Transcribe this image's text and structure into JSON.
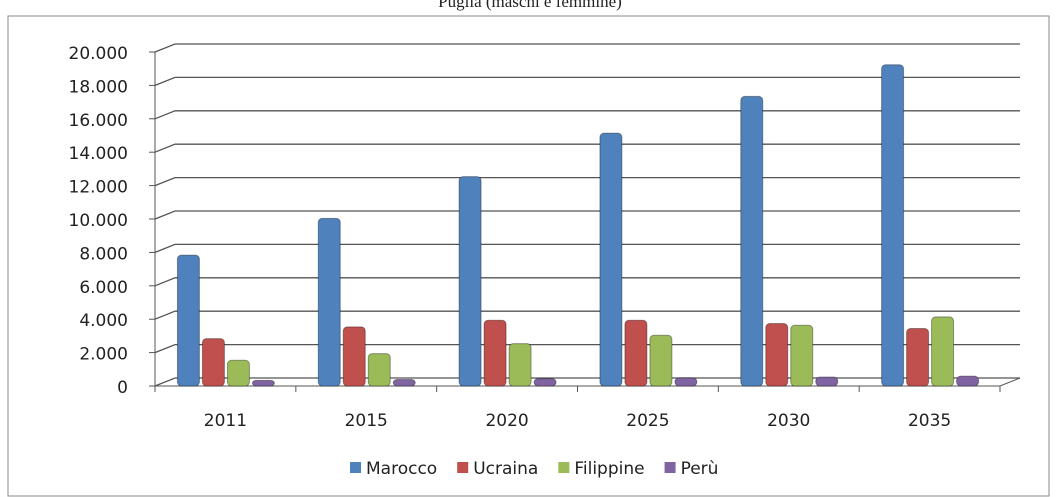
{
  "chart_data": {
    "type": "bar",
    "title": "Puglia (maschi e femmine)",
    "categories": [
      "2011",
      "2015",
      "2020",
      "2025",
      "2030",
      "2035"
    ],
    "series": [
      {
        "name": "Marocco",
        "color": "#4f81bd",
        "values": [
          7600,
          9800,
          12300,
          14900,
          17100,
          19000
        ]
      },
      {
        "name": "Ucraina",
        "color": "#c0504d",
        "values": [
          2600,
          3300,
          3700,
          3700,
          3500,
          3200
        ]
      },
      {
        "name": "Filippine",
        "color": "#9bbb59",
        "values": [
          1300,
          1700,
          2300,
          2800,
          3400,
          3900
        ]
      },
      {
        "name": "Perù",
        "color": "#8064a2",
        "values": [
          100,
          150,
          200,
          250,
          300,
          350
        ]
      }
    ],
    "ylim": [
      0,
      20000
    ],
    "yticks": [
      0,
      {
        "value": 2000,
        "label": "2.000"
      },
      {
        "value": 4000,
        "label": "4.000"
      },
      {
        "value": 6000,
        "label": "6.000"
      },
      {
        "value": 8000,
        "label": "8.000"
      },
      {
        "value": 10000,
        "label": "10.000"
      },
      {
        "value": 12000,
        "label": "12.000"
      },
      {
        "value": 14000,
        "label": "14.000"
      },
      {
        "value": 16000,
        "label": "16.000"
      },
      {
        "value": 18000,
        "label": "18.000"
      },
      {
        "value": 20000,
        "label": "20.000"
      }
    ],
    "grid": true,
    "legend": "bottom"
  }
}
